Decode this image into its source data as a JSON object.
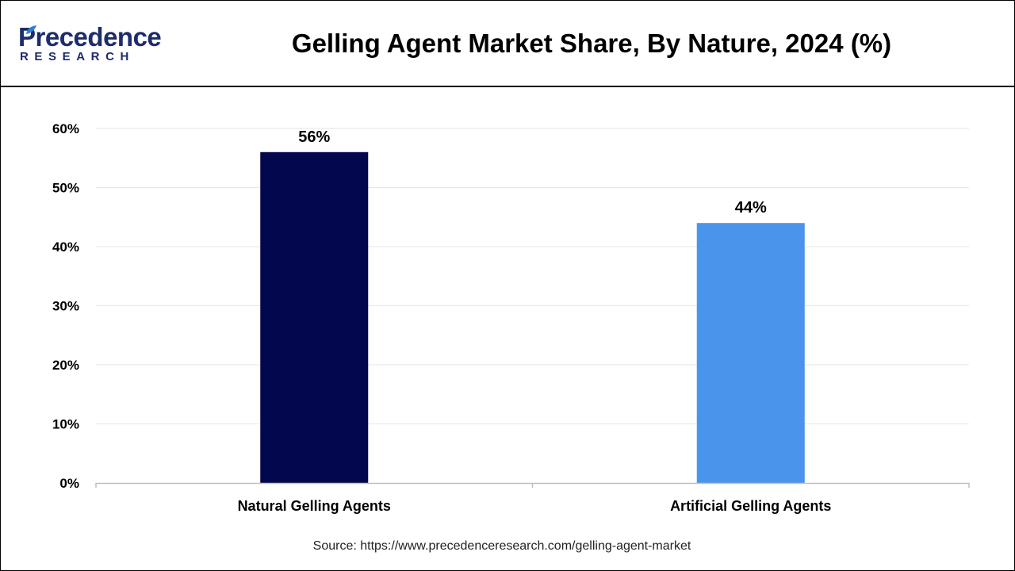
{
  "header": {
    "logo": {
      "name": "Precedence",
      "tagline": "RESEARCH",
      "color": "#1d2c6b",
      "accent_color": "#2f7fd0"
    }
  },
  "chart_data": {
    "type": "bar",
    "title": "Gelling Agent Market Share, By Nature, 2024 (%)",
    "xlabel": "",
    "ylabel": "",
    "categories": [
      "Natural Gelling Agents",
      "Artificial Gelling Agents"
    ],
    "values": [
      56,
      44
    ],
    "value_labels": [
      "56%",
      "44%"
    ],
    "bar_colors": [
      "#03074d",
      "#4a94ec"
    ],
    "ylim": [
      0,
      60
    ],
    "yticks": [
      0,
      10,
      20,
      30,
      40,
      50,
      60
    ],
    "ytick_labels": [
      "0%",
      "10%",
      "20%",
      "30%",
      "40%",
      "50%",
      "60%"
    ],
    "grid": true,
    "legend": "none"
  },
  "footer": {
    "source": "Source: https://www.precedenceresearch.com/gelling-agent-market"
  }
}
